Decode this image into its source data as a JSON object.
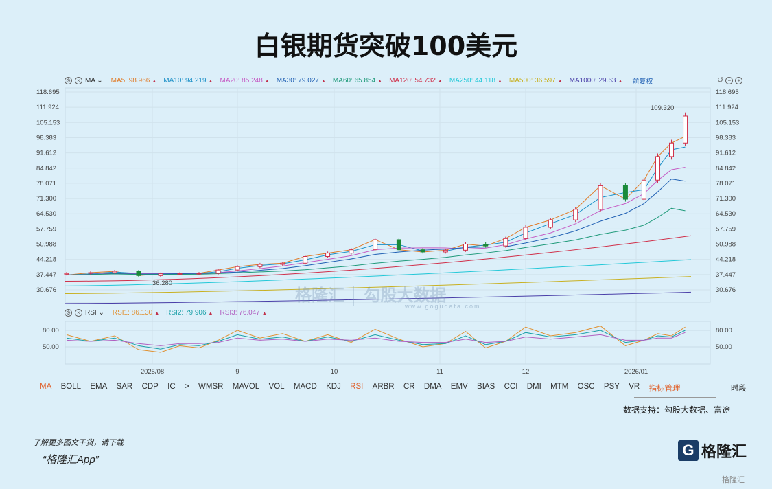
{
  "title": "白银期货突破100美元",
  "main_legend": {
    "indicator": "MA",
    "items": [
      {
        "label": "MA5:",
        "value": "98.966",
        "color": "#e07b28"
      },
      {
        "label": "MA10:",
        "value": "94.219",
        "color": "#1a8fc7"
      },
      {
        "label": "MA20:",
        "value": "85.248",
        "color": "#c65bc4"
      },
      {
        "label": "MA30:",
        "value": "79.027",
        "color": "#1f5fb3"
      },
      {
        "label": "MA60:",
        "value": "65.854",
        "color": "#1f9a7a"
      },
      {
        "label": "MA120:",
        "value": "54.732",
        "color": "#d0304a"
      },
      {
        "label": "MA250:",
        "value": "44.118",
        "color": "#22c8d8"
      },
      {
        "label": "MA500:",
        "value": "36.597",
        "color": "#c8b020"
      },
      {
        "label": "MA1000:",
        "value": "29.63",
        "color": "#4a3fa8"
      }
    ],
    "adjust": "前复权"
  },
  "rsi_legend": {
    "indicator": "RSI",
    "items": [
      {
        "label": "RSI1:",
        "value": "86.130",
        "color": "#e09030"
      },
      {
        "label": "RSI2:",
        "value": "79.906",
        "color": "#1aa0a8"
      },
      {
        "label": "RSI3:",
        "value": "76.047",
        "color": "#b060c0"
      }
    ]
  },
  "chart_data": {
    "type": "candlestick",
    "price_ticks": [
      "118.695",
      "111.924",
      "105.153",
      "98.383",
      "91.612",
      "84.842",
      "78.071",
      "71.300",
      "64.530",
      "57.759",
      "50.988",
      "44.218",
      "37.447",
      "30.676"
    ],
    "ylim": [
      30.676,
      118.695
    ],
    "x_ticks": [
      "2025/08",
      "9",
      "10",
      "11",
      "12",
      "2026/01"
    ],
    "annotations": {
      "high": "109.320",
      "low": "36.280"
    },
    "dates": [
      "2025-07-07",
      "2025-07-14",
      "2025-07-21",
      "2025-07-28",
      "2025-08-04",
      "2025-08-11",
      "2025-08-18",
      "2025-08-25",
      "2025-09-01",
      "2025-09-08",
      "2025-09-15",
      "2025-09-22",
      "2025-09-29",
      "2025-10-06",
      "2025-10-13",
      "2025-10-20",
      "2025-10-27",
      "2025-11-03",
      "2025-11-10",
      "2025-11-17",
      "2025-11-24",
      "2025-12-01",
      "2025-12-08",
      "2025-12-15",
      "2025-12-22",
      "2025-12-29",
      "2026-01-05",
      "2026-01-12",
      "2026-01-19",
      "2026-01-26"
    ],
    "close": [
      38.0,
      38.3,
      38.9,
      37.0,
      37.8,
      37.9,
      38.0,
      39.5,
      41.0,
      42.0,
      42.5,
      45.5,
      47.0,
      48.5,
      53.0,
      48.5,
      47.5,
      48.3,
      51.0,
      50.2,
      53.5,
      58.5,
      61.8,
      66.5,
      77.0,
      71.0,
      79.5,
      90.0,
      96.0,
      108.0
    ],
    "long_ma_start": {
      "MA120": 34.5,
      "MA250": 32.4,
      "MA500": 29.0,
      "MA1000": 24.6
    },
    "rsi": {
      "ticks": [
        "80.00",
        "50.00"
      ],
      "RSI1": [
        72,
        60,
        70,
        45,
        40,
        52,
        48,
        62,
        80,
        66,
        74,
        60,
        72,
        58,
        82,
        64,
        50,
        56,
        78,
        48,
        60,
        86,
        70,
        76,
        88,
        52,
        62,
        74,
        70,
        86
      ],
      "RSI2": [
        66,
        60,
        66,
        52,
        46,
        54,
        52,
        60,
        72,
        64,
        68,
        60,
        68,
        60,
        72,
        62,
        54,
        56,
        70,
        54,
        60,
        76,
        68,
        72,
        80,
        58,
        62,
        70,
        68,
        80
      ],
      "RSI3": [
        62,
        60,
        62,
        56,
        52,
        56,
        56,
        58,
        66,
        62,
        64,
        60,
        64,
        62,
        66,
        60,
        58,
        58,
        64,
        58,
        60,
        68,
        64,
        68,
        72,
        62,
        62,
        66,
        66,
        76
      ]
    }
  },
  "tabs": [
    "MA",
    "BOLL",
    "EMA",
    "SAR",
    "CDP",
    "IC",
    ">",
    "WMSR",
    "MAVOL",
    "VOL",
    "MACD",
    "KDJ",
    "RSI",
    "ARBR",
    "CR",
    "DMA",
    "EMV",
    "BIAS",
    "CCI",
    "DMI",
    "MTM",
    "OSC",
    "PSY",
    "VR",
    "指标管理"
  ],
  "tabs_right": "时段",
  "data_source": "数据支持：勾股大数据、富途",
  "footer": {
    "line1": "了解更多图文干货，请下载",
    "line2": "“格隆汇App”",
    "logo": "格隆汇",
    "watermark": "格隆汇",
    "watermark2": "勾股大数据",
    "watermark_url": "www.gogudata.com"
  }
}
